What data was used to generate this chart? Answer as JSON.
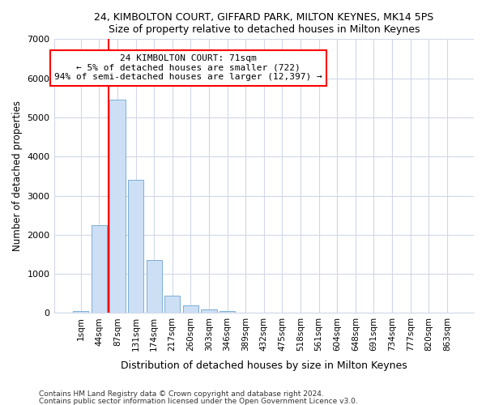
{
  "title1": "24, KIMBOLTON COURT, GIFFARD PARK, MILTON KEYNES, MK14 5PS",
  "title2": "Size of property relative to detached houses in Milton Keynes",
  "xlabel": "Distribution of detached houses by size in Milton Keynes",
  "ylabel": "Number of detached properties",
  "bar_labels": [
    "1sqm",
    "44sqm",
    "87sqm",
    "131sqm",
    "174sqm",
    "217sqm",
    "260sqm",
    "303sqm",
    "346sqm",
    "389sqm",
    "432sqm",
    "475sqm",
    "518sqm",
    "561sqm",
    "604sqm",
    "648sqm",
    "691sqm",
    "734sqm",
    "777sqm",
    "820sqm",
    "863sqm"
  ],
  "bar_values": [
    60,
    2250,
    5450,
    3400,
    1350,
    450,
    200,
    100,
    60,
    0,
    0,
    0,
    0,
    0,
    0,
    0,
    0,
    0,
    0,
    0,
    0
  ],
  "bar_color": "#ccdff5",
  "bar_edge_color": "#7bafd4",
  "vline_x": 1.5,
  "vline_color": "red",
  "annotation_text": "24 KIMBOLTON COURT: 71sqm\n← 5% of detached houses are smaller (722)\n94% of semi-detached houses are larger (12,397) →",
  "annotation_box_facecolor": "white",
  "annotation_box_edgecolor": "red",
  "ylim": [
    0,
    7000
  ],
  "yticks": [
    0,
    1000,
    2000,
    3000,
    4000,
    5000,
    6000,
    7000
  ],
  "footnote1": "Contains HM Land Registry data © Crown copyright and database right 2024.",
  "footnote2": "Contains public sector information licensed under the Open Government Licence v3.0.",
  "bg_color": "white",
  "plot_bg_color": "white",
  "grid_color": "#d0d8e8"
}
